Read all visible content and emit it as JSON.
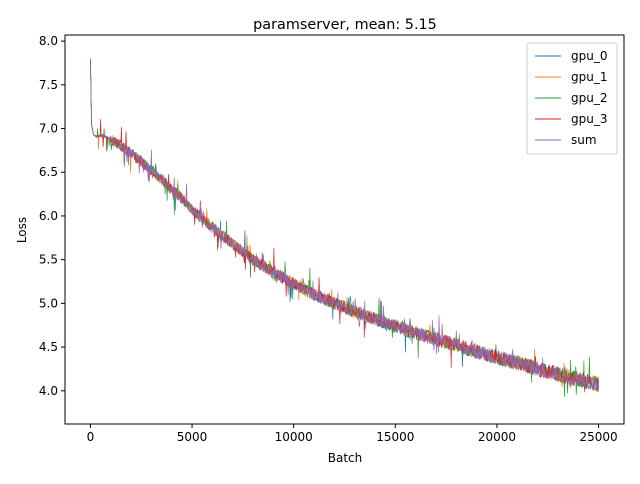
{
  "chart_data": {
    "type": "line",
    "title": "paramserver, mean: 5.15",
    "xlabel": "Batch",
    "ylabel": "Loss",
    "xlim": [
      -1250,
      26250
    ],
    "ylim": [
      3.62,
      8.07
    ],
    "xticks": [
      0,
      5000,
      10000,
      15000,
      20000,
      25000
    ],
    "xtick_labels": [
      "0",
      "5000",
      "10000",
      "15000",
      "20000",
      "25000"
    ],
    "yticks": [
      4.0,
      4.5,
      5.0,
      5.5,
      6.0,
      6.5,
      7.0,
      7.5,
      8.0
    ],
    "ytick_labels": [
      "4.0",
      "4.5",
      "5.0",
      "5.5",
      "6.0",
      "6.5",
      "7.0",
      "7.5",
      "8.0"
    ],
    "grid": false,
    "legend_position": "top-right",
    "series": [
      {
        "name": "gpu_0",
        "color": "#1f77b4",
        "x": [
          0,
          60,
          150,
          300,
          600,
          900,
          1200,
          1500,
          2000,
          2500,
          3000,
          3500,
          4000,
          4500,
          5000,
          5500,
          6000,
          6500,
          7000,
          7500,
          8000,
          8500,
          9000,
          9500,
          10000,
          11000,
          12000,
          13000,
          14000,
          15000,
          16000,
          17000,
          18000,
          19000,
          20000,
          21000,
          22000,
          23000,
          24000,
          25000
        ],
        "y": [
          7.8,
          7.05,
          6.93,
          6.91,
          6.92,
          6.89,
          6.85,
          6.8,
          6.72,
          6.62,
          6.52,
          6.42,
          6.3,
          6.2,
          6.08,
          5.97,
          5.87,
          5.77,
          5.68,
          5.59,
          5.5,
          5.43,
          5.36,
          5.29,
          5.23,
          5.1,
          5.0,
          4.91,
          4.82,
          4.74,
          4.66,
          4.59,
          4.52,
          4.45,
          4.38,
          4.32,
          4.25,
          4.19,
          4.13,
          4.08
        ]
      },
      {
        "name": "gpu_1",
        "color": "#ff7f0e",
        "x": [
          0,
          60,
          150,
          300,
          600,
          900,
          1200,
          1500,
          2000,
          2500,
          3000,
          3500,
          4000,
          4500,
          5000,
          5500,
          6000,
          6500,
          7000,
          7500,
          8000,
          8500,
          9000,
          9500,
          10000,
          11000,
          12000,
          13000,
          14000,
          15000,
          16000,
          17000,
          18000,
          19000,
          20000,
          21000,
          22000,
          23000,
          24000,
          25000
        ],
        "y": [
          7.8,
          7.05,
          6.93,
          6.91,
          6.92,
          6.89,
          6.85,
          6.8,
          6.72,
          6.62,
          6.52,
          6.42,
          6.3,
          6.2,
          6.08,
          5.97,
          5.87,
          5.77,
          5.68,
          5.59,
          5.5,
          5.43,
          5.36,
          5.29,
          5.23,
          5.1,
          5.0,
          4.91,
          4.82,
          4.74,
          4.66,
          4.59,
          4.52,
          4.45,
          4.38,
          4.32,
          4.25,
          4.19,
          4.13,
          4.08
        ]
      },
      {
        "name": "gpu_2",
        "color": "#2ca02c",
        "x": [
          0,
          60,
          150,
          300,
          600,
          900,
          1200,
          1500,
          2000,
          2500,
          3000,
          3500,
          4000,
          4500,
          5000,
          5500,
          6000,
          6500,
          7000,
          7500,
          8000,
          8500,
          9000,
          9500,
          10000,
          11000,
          12000,
          13000,
          14000,
          15000,
          16000,
          17000,
          18000,
          19000,
          20000,
          21000,
          22000,
          23000,
          24000,
          25000
        ],
        "y": [
          7.8,
          7.05,
          6.93,
          6.91,
          6.92,
          6.89,
          6.85,
          6.8,
          6.72,
          6.62,
          6.52,
          6.42,
          6.3,
          6.2,
          6.08,
          5.97,
          5.87,
          5.77,
          5.68,
          5.59,
          5.5,
          5.43,
          5.36,
          5.29,
          5.23,
          5.1,
          5.0,
          4.91,
          4.82,
          4.74,
          4.66,
          4.59,
          4.52,
          4.45,
          4.38,
          4.32,
          4.25,
          4.19,
          4.13,
          4.08
        ]
      },
      {
        "name": "gpu_3",
        "color": "#d62728",
        "x": [
          0,
          60,
          150,
          300,
          600,
          900,
          1200,
          1500,
          2000,
          2500,
          3000,
          3500,
          4000,
          4500,
          5000,
          5500,
          6000,
          6500,
          7000,
          7500,
          8000,
          8500,
          9000,
          9500,
          10000,
          11000,
          12000,
          13000,
          14000,
          15000,
          16000,
          17000,
          18000,
          19000,
          20000,
          21000,
          22000,
          23000,
          24000,
          25000
        ],
        "y": [
          7.8,
          7.05,
          6.93,
          6.91,
          6.92,
          6.89,
          6.85,
          6.8,
          6.72,
          6.62,
          6.52,
          6.42,
          6.3,
          6.2,
          6.08,
          5.97,
          5.87,
          5.77,
          5.68,
          5.59,
          5.5,
          5.43,
          5.36,
          5.29,
          5.23,
          5.1,
          5.0,
          4.91,
          4.82,
          4.74,
          4.66,
          4.59,
          4.52,
          4.45,
          4.38,
          4.32,
          4.25,
          4.19,
          4.13,
          4.08
        ]
      },
      {
        "name": "sum",
        "color": "#9467bd",
        "x": [
          0,
          60,
          150,
          300,
          600,
          900,
          1200,
          1500,
          2000,
          2500,
          3000,
          3500,
          4000,
          4500,
          5000,
          5500,
          6000,
          6500,
          7000,
          7500,
          8000,
          8500,
          9000,
          9500,
          10000,
          11000,
          12000,
          13000,
          14000,
          15000,
          16000,
          17000,
          18000,
          19000,
          20000,
          21000,
          22000,
          23000,
          24000,
          25000
        ],
        "y": [
          7.8,
          7.05,
          6.93,
          6.91,
          6.92,
          6.89,
          6.85,
          6.8,
          6.72,
          6.62,
          6.52,
          6.42,
          6.3,
          6.2,
          6.08,
          5.97,
          5.87,
          5.77,
          5.68,
          5.59,
          5.5,
          5.43,
          5.36,
          5.29,
          5.23,
          5.1,
          5.0,
          4.91,
          4.82,
          4.74,
          4.66,
          4.59,
          4.52,
          4.45,
          4.38,
          4.32,
          4.25,
          4.19,
          4.13,
          4.08
        ]
      }
    ]
  }
}
